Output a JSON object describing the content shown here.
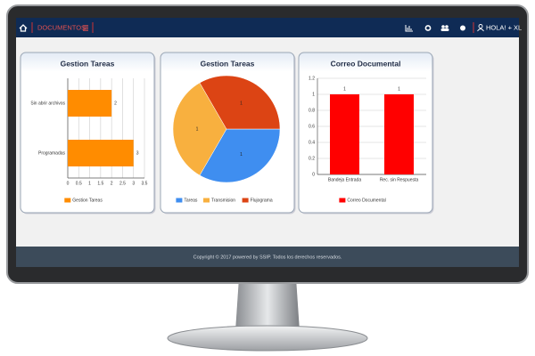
{
  "nav": {
    "brand": "DOCUMENTOS",
    "greeting": "HOLA! + XL"
  },
  "panels": [
    {
      "type": "hbar",
      "title": "Gestion Tareas",
      "categories": [
        "Sin abrir archivos",
        "Programadas"
      ],
      "series": [
        {
          "name": "Gestion Tareas",
          "color": "#ff8c00",
          "values": [
            2,
            3
          ]
        }
      ],
      "xlim": [
        0,
        3.5
      ],
      "xticks": [
        0,
        0.5,
        1,
        1.5,
        2,
        2.5,
        3,
        3.5
      ],
      "grid": true
    },
    {
      "type": "pie",
      "title": "Gestion Tareas",
      "categories": [
        "Tareas",
        "Transmision",
        "Flujograma"
      ],
      "values": [
        1,
        1,
        1
      ],
      "colors": [
        "#3f8ef0",
        "#f8b03f",
        "#dc4414"
      ]
    },
    {
      "type": "bar",
      "title": "Correo Documental",
      "categories": [
        "Bandeja Entrada",
        "Rec. sin Respuesta"
      ],
      "series": [
        {
          "name": "Correo Documental",
          "color": "#ff0000",
          "values": [
            1,
            1
          ]
        }
      ],
      "ylim": [
        0,
        1.2
      ],
      "yticks": [
        0,
        0.2,
        0.4,
        0.6,
        0.8,
        1,
        1.2
      ],
      "grid": true
    }
  ],
  "footer": "Copyright © 2017 powered by SSIP. Todos los derechos reservados."
}
